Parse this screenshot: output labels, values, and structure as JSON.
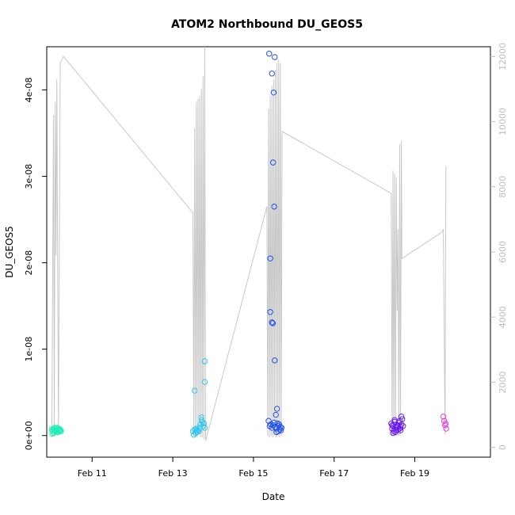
{
  "chart_data": {
    "type": "scatter",
    "title": "ATOM2 Northbound DU_GEOS5",
    "xlabel": "Date",
    "ylabel": "DU_GEOS5",
    "xlim": [
      "2017-02-09T21:00",
      "2017-02-20T21:00"
    ],
    "ylim": [
      -2.5e-09,
      4.5e-08
    ],
    "y_ticks": [
      {
        "value": 0,
        "label": "0e+00"
      },
      {
        "value": 1e-08,
        "label": "1e-08"
      },
      {
        "value": 2e-08,
        "label": "2e-08"
      },
      {
        "value": 3e-08,
        "label": "3e-08"
      },
      {
        "value": 4e-08,
        "label": "4e-08"
      }
    ],
    "x_ticks": [
      {
        "value": "2017-02-11T00:00",
        "label": "Feb 11"
      },
      {
        "value": "2017-02-13T00:00",
        "label": "Feb 13"
      },
      {
        "value": "2017-02-15T00:00",
        "label": "Feb 15"
      },
      {
        "value": "2017-02-17T00:00",
        "label": "Feb 17"
      },
      {
        "value": "2017-02-19T00:00",
        "label": "Feb 19"
      }
    ],
    "secondary_y": {
      "ylim": [
        -300,
        12300
      ],
      "ticks": [
        0,
        2000,
        4000,
        6000,
        8000,
        10000,
        12000
      ],
      "color": "#bdbdbd"
    },
    "series": [
      {
        "color": "#19f0b4",
        "points": [
          [
            "2017-02-10T00:00",
            7e-10
          ],
          [
            "2017-02-10T00:30",
            5e-10
          ],
          [
            "2017-02-10T01:00",
            8e-10
          ],
          [
            "2017-02-10T01:30",
            6e-10
          ],
          [
            "2017-02-10T02:00",
            9e-10
          ],
          [
            "2017-02-10T02:30",
            5e-10
          ],
          [
            "2017-02-10T03:00",
            7e-10
          ],
          [
            "2017-02-10T03:30",
            4e-10
          ],
          [
            "2017-02-10T04:00",
            8e-10
          ],
          [
            "2017-02-10T04:30",
            6e-10
          ],
          [
            "2017-02-10T05:00",
            7e-10
          ],
          [
            "2017-02-10T05:30",
            5e-10
          ],
          [
            "2017-02-10T00:15",
            2e-10
          ],
          [
            "2017-02-10T01:15",
            3e-10
          ],
          [
            "2017-02-10T02:15",
            6e-10
          ],
          [
            "2017-02-10T03:15",
            9e-10
          ],
          [
            "2017-02-10T04:15",
            5e-10
          ],
          [
            "2017-02-10T05:15",
            6e-10
          ]
        ]
      },
      {
        "color": "#2fc6f0",
        "points": [
          [
            "2017-02-13T12:00",
            5e-10
          ],
          [
            "2017-02-13T12:30",
            1e-10
          ],
          [
            "2017-02-13T13:00",
            7e-10
          ],
          [
            "2017-02-13T13:30",
            3e-10
          ],
          [
            "2017-02-13T14:00",
            8e-10
          ],
          [
            "2017-02-13T14:30",
            4e-10
          ],
          [
            "2017-02-13T15:00",
            6e-10
          ],
          [
            "2017-02-13T15:30",
            5e-10
          ],
          [
            "2017-02-13T16:00",
            9e-10
          ],
          [
            "2017-02-13T16:30",
            1.3e-09
          ],
          [
            "2017-02-13T17:00",
            2.1e-09
          ],
          [
            "2017-02-13T17:30",
            1.6e-09
          ],
          [
            "2017-02-13T18:00",
            1.1e-09
          ],
          [
            "2017-02-13T18:30",
            1.4e-09
          ],
          [
            "2017-02-13T19:00",
            9e-10
          ],
          [
            "2017-02-13T13:00",
            5.2e-09
          ],
          [
            "2017-02-13T19:00",
            8.6e-09
          ],
          [
            "2017-02-13T19:00",
            6.2e-09
          ],
          [
            "2017-02-13T17:00",
            1.8e-09
          ],
          [
            "2017-02-13T14:00",
            6e-10
          ]
        ]
      },
      {
        "color": "#1f4ff0",
        "points": [
          [
            "2017-02-15T09:20",
            4.42e-08
          ],
          [
            "2017-02-15T11:00",
            4.19e-08
          ],
          [
            "2017-02-15T12:40",
            4.38e-08
          ],
          [
            "2017-02-15T12:00",
            3.97e-08
          ],
          [
            "2017-02-15T11:40",
            3.16e-08
          ],
          [
            "2017-02-15T12:20",
            2.65e-08
          ],
          [
            "2017-02-15T10:00",
            2.05e-08
          ],
          [
            "2017-02-15T10:00",
            1.43e-08
          ],
          [
            "2017-02-15T11:00",
            1.31e-08
          ],
          [
            "2017-02-15T11:30",
            1.3e-08
          ],
          [
            "2017-02-15T12:40",
            8.7e-09
          ],
          [
            "2017-02-15T14:00",
            3.1e-09
          ],
          [
            "2017-02-15T13:20",
            2.4e-09
          ],
          [
            "2017-02-15T09:00",
            1.7e-09
          ],
          [
            "2017-02-15T09:40",
            1.1e-09
          ],
          [
            "2017-02-15T10:20",
            1.3e-09
          ],
          [
            "2017-02-15T11:00",
            9e-10
          ],
          [
            "2017-02-15T11:40",
            1.2e-09
          ],
          [
            "2017-02-15T12:20",
            1.5e-09
          ],
          [
            "2017-02-15T13:00",
            1e-09
          ],
          [
            "2017-02-15T13:40",
            8e-10
          ],
          [
            "2017-02-15T14:20",
            1.4e-09
          ],
          [
            "2017-02-15T15:00",
            1.1e-09
          ],
          [
            "2017-02-15T15:40",
            7e-10
          ],
          [
            "2017-02-15T16:00",
            1e-09
          ],
          [
            "2017-02-15T16:20",
            6e-10
          ],
          [
            "2017-02-15T14:40",
            5e-10
          ],
          [
            "2017-02-15T15:20",
            1.3e-09
          ],
          [
            "2017-02-15T13:40",
            4e-10
          ],
          [
            "2017-02-15T16:40",
            9e-10
          ]
        ]
      },
      {
        "color": "#6a1cf0",
        "points": [
          [
            "2017-02-18T10:00",
            1.4e-09
          ],
          [
            "2017-02-18T10:30",
            8e-10
          ],
          [
            "2017-02-18T11:00",
            1.1e-09
          ],
          [
            "2017-02-18T11:30",
            5e-10
          ],
          [
            "2017-02-18T12:00",
            1.8e-09
          ],
          [
            "2017-02-18T12:30",
            9e-10
          ],
          [
            "2017-02-18T13:00",
            6e-10
          ],
          [
            "2017-02-18T13:30",
            1.2e-09
          ],
          [
            "2017-02-18T14:00",
            7e-10
          ],
          [
            "2017-02-18T14:30",
            1.5e-09
          ],
          [
            "2017-02-18T15:00",
            8e-10
          ],
          [
            "2017-02-18T15:30",
            1e-09
          ],
          [
            "2017-02-18T16:00",
            1.3e-09
          ],
          [
            "2017-02-18T16:30",
            1.9e-09
          ],
          [
            "2017-02-18T17:00",
            1.1e-09
          ],
          [
            "2017-02-18T11:00",
            3e-10
          ],
          [
            "2017-02-18T12:00",
            1.6e-09
          ],
          [
            "2017-02-18T13:30",
            1e-09
          ],
          [
            "2017-02-18T15:00",
            1.7e-09
          ],
          [
            "2017-02-18T16:00",
            2.2e-09
          ],
          [
            "2017-02-18T10:30",
            1.2e-09
          ],
          [
            "2017-02-18T14:00",
            1.1e-09
          ],
          [
            "2017-02-18T12:30",
            4e-10
          ],
          [
            "2017-02-18T15:30",
            6e-10
          ]
        ]
      },
      {
        "color": "#e23ce8",
        "points": [
          [
            "2017-02-19T17:00",
            2.2e-09
          ],
          [
            "2017-02-19T17:30",
            1.7e-09
          ],
          [
            "2017-02-19T18:00",
            1.2e-09
          ],
          [
            "2017-02-19T18:20",
            1.4e-09
          ],
          [
            "2017-02-19T18:40",
            8e-10
          ]
        ]
      }
    ],
    "secondary_line": {
      "color": "#c8c8c8",
      "points": [
        [
          "2017-02-10T00:00",
          350
        ],
        [
          "2017-02-10T01:00",
          10200
        ],
        [
          "2017-02-10T01:30",
          350
        ],
        [
          "2017-02-10T02:00",
          10600
        ],
        [
          "2017-02-10T02:30",
          5900
        ],
        [
          "2017-02-10T03:00",
          11300
        ],
        [
          "2017-02-10T04:00",
          400
        ],
        [
          "2017-02-10T05:00",
          11800
        ],
        [
          "2017-02-10T07:00",
          12000
        ],
        [
          "2017-02-13T12:00",
          7200
        ],
        [
          "2017-02-13T12:30",
          350
        ],
        [
          "2017-02-13T13:00",
          9800
        ],
        [
          "2017-02-13T13:30",
          300
        ],
        [
          "2017-02-13T14:00",
          10600
        ],
        [
          "2017-02-13T14:30",
          300
        ],
        [
          "2017-02-13T15:00",
          10700
        ],
        [
          "2017-02-13T15:30",
          400
        ],
        [
          "2017-02-13T16:00",
          10800
        ],
        [
          "2017-02-13T16:30",
          300
        ],
        [
          "2017-02-13T17:00",
          11000
        ],
        [
          "2017-02-13T17:30",
          300
        ],
        [
          "2017-02-13T18:00",
          11400
        ],
        [
          "2017-02-13T18:30",
          250
        ],
        [
          "2017-02-13T19:00",
          12300
        ],
        [
          "2017-02-13T19:30",
          200
        ],
        [
          "2017-02-15T08:00",
          7400
        ],
        [
          "2017-02-15T08:30",
          350
        ],
        [
          "2017-02-15T09:00",
          10400
        ],
        [
          "2017-02-15T09:30",
          300
        ],
        [
          "2017-02-15T10:00",
          10800
        ],
        [
          "2017-02-15T10:30",
          350
        ],
        [
          "2017-02-15T11:00",
          11100
        ],
        [
          "2017-02-15T11:30",
          300
        ],
        [
          "2017-02-15T12:00",
          11300
        ],
        [
          "2017-02-15T12:30",
          400
        ],
        [
          "2017-02-15T13:00",
          11600
        ],
        [
          "2017-02-15T13:30",
          300
        ],
        [
          "2017-02-15T14:00",
          11800
        ],
        [
          "2017-02-15T14:30",
          350
        ],
        [
          "2017-02-15T15:00",
          11900
        ],
        [
          "2017-02-15T15:30",
          300
        ],
        [
          "2017-02-15T16:00",
          11800
        ],
        [
          "2017-02-15T16:30",
          350
        ],
        [
          "2017-02-15T17:00",
          9700
        ],
        [
          "2017-02-18T10:00",
          7800
        ],
        [
          "2017-02-18T10:30",
          350
        ],
        [
          "2017-02-18T11:00",
          8500
        ],
        [
          "2017-02-18T11:30",
          400
        ],
        [
          "2017-02-18T12:00",
          8400
        ],
        [
          "2017-02-18T12:30",
          350
        ],
        [
          "2017-02-18T13:00",
          8300
        ],
        [
          "2017-02-18T13:30",
          4200
        ],
        [
          "2017-02-18T14:00",
          6700
        ],
        [
          "2017-02-18T14:30",
          350
        ],
        [
          "2017-02-18T15:00",
          9300
        ],
        [
          "2017-02-18T15:30",
          400
        ],
        [
          "2017-02-18T16:00",
          9400
        ],
        [
          "2017-02-18T16:20",
          5800
        ],
        [
          "2017-02-19T16:00",
          6600
        ],
        [
          "2017-02-19T17:00",
          6700
        ],
        [
          "2017-02-19T18:00",
          400
        ],
        [
          "2017-02-19T18:30",
          8600
        ],
        [
          "2017-02-19T19:00",
          8600
        ]
      ]
    },
    "grid": false,
    "legend": "none"
  }
}
